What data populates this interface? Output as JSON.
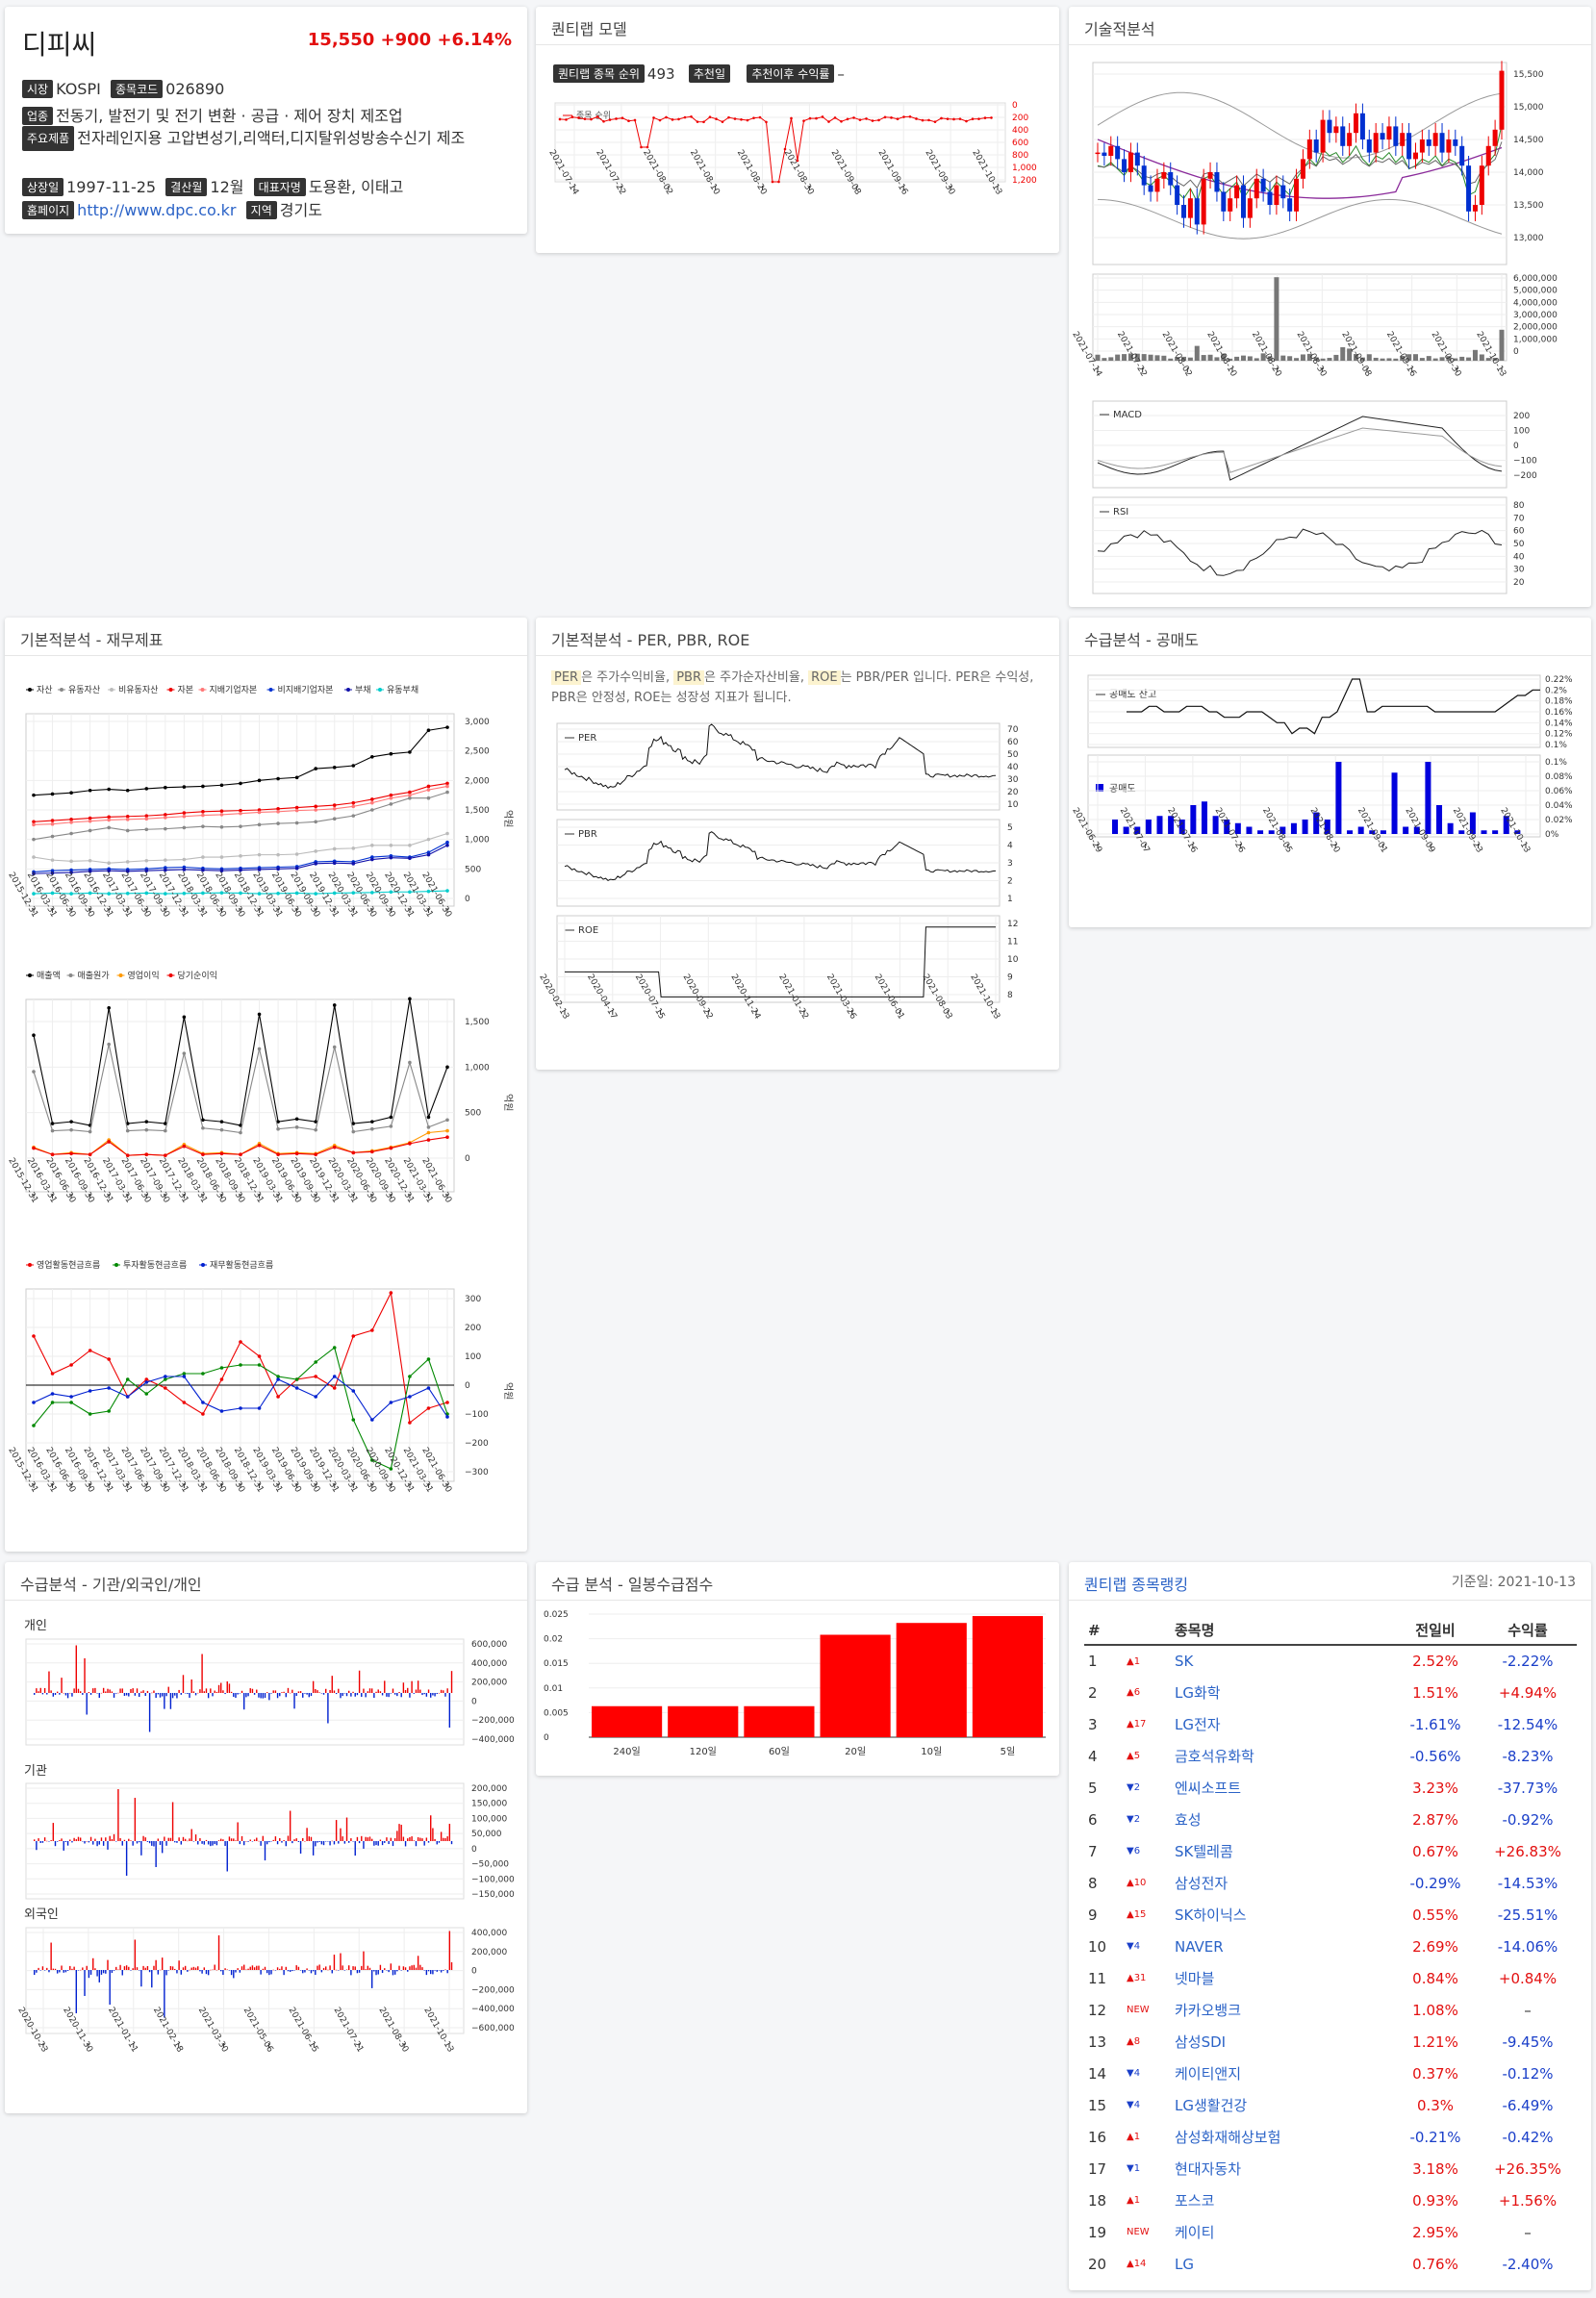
{
  "stock": {
    "name": "디피씨",
    "price": "15,550",
    "change": "+900",
    "change_pct": "+6.14%",
    "market_tag": "시장",
    "market": "KOSPI",
    "code_tag": "종목코드",
    "code": "026890",
    "industry_tag": "업종",
    "industry": "전동기, 발전기 및 전기 변환 · 공급 · 제어 장치 제조업",
    "products_tag": "주요제품",
    "products": "전자레인지용 고압변성기,리액터,디지탈위성방송수신기 제조",
    "listed_tag": "상장일",
    "listed": "1997-11-25",
    "fiscal_tag": "결산월",
    "fiscal": "12월",
    "ceo_tag": "대표자명",
    "ceo": "도용환, 이태고",
    "homepage_tag": "홈페이지",
    "homepage": "http://www.dpc.co.kr",
    "region_tag": "지역",
    "region": "경기도"
  },
  "quant": {
    "title": "퀀티랩 모델",
    "rank_tag": "퀀티랩 종목 순위",
    "rank": "493",
    "rec_date_tag": "추천일",
    "return_tag": "추천이후 수익률",
    "return": "–",
    "legend": "종목 순위",
    "yticks": [
      "0",
      "200",
      "400",
      "600",
      "800",
      "1,000",
      "1,200"
    ],
    "xticks": [
      "2021-07-14",
      "2021-07-22",
      "2021-08-02",
      "2021-08-10",
      "2021-08-20",
      "2021-08-30",
      "2021-09-08",
      "2021-09-16",
      "2021-09-30",
      "2021-10-13"
    ]
  },
  "tech": {
    "title": "기술적분석",
    "price_ticks": [
      "15,500",
      "15,000",
      "14,500",
      "14,000",
      "13,500",
      "13,000"
    ],
    "vol_ticks": [
      "6,000,000",
      "5,000,000",
      "4,000,000",
      "3,000,000",
      "2,000,000",
      "1,000,000",
      "0"
    ],
    "xticks": [
      "2021-07-14",
      "2021-07-22",
      "2021-08-02",
      "2021-08-10",
      "2021-08-20",
      "2021-08-30",
      "2021-09-08",
      "2021-09-16",
      "2021-09-30",
      "2021-10-13"
    ],
    "macd_label": "MACD",
    "macd_ticks": [
      "200",
      "100",
      "0",
      "−100",
      "−200"
    ],
    "rsi_label": "RSI",
    "rsi_ticks": [
      "80",
      "70",
      "60",
      "50",
      "40",
      "30",
      "20"
    ]
  },
  "fund": {
    "title": "기본적분석 - 재무제표",
    "unit": "억원",
    "legend1": [
      "자산",
      "유동자산",
      "비유동자산",
      "자본",
      "지배기업자본",
      "비지배기업자본",
      "부채",
      "유동부채"
    ],
    "ticks1": [
      "3,000",
      "2,500",
      "2,000",
      "1,500",
      "1,000",
      "500",
      "0"
    ],
    "legend2": [
      "매출액",
      "매출원가",
      "영업이익",
      "당기순이익"
    ],
    "ticks2": [
      "1,500",
      "1,000",
      "500",
      "0"
    ],
    "legend3": [
      "영업활동현금흐름",
      "투자활동현금흐름",
      "재무활동현금흐름"
    ],
    "ticks3": [
      "300",
      "200",
      "100",
      "0",
      "−100",
      "−200",
      "−300"
    ],
    "dates": [
      "2015-12-31",
      "2016-03-31",
      "2016-06-30",
      "2016-09-30",
      "2016-12-31",
      "2017-03-31",
      "2017-06-30",
      "2017-09-30",
      "2017-12-31",
      "2018-03-31",
      "2018-06-30",
      "2018-09-30",
      "2018-12-31",
      "2019-03-31",
      "2019-06-30",
      "2019-09-30",
      "2019-12-31",
      "2020-03-31",
      "2020-06-30",
      "2020-09-30",
      "2020-12-31",
      "2021-03-31",
      "2021-06-30"
    ]
  },
  "per": {
    "title": "기본적분석 - PER, PBR, ROE",
    "desc_parts": [
      "PER",
      "은 주가수익비율, ",
      "PBR",
      "은 주가순자산비율, ",
      "ROE",
      "는 PBR/PER 입니다. PER은 수익성, PBR은 안정성, ROE는 성장성 지표가 됩니다."
    ],
    "per_label": "PER",
    "per_ticks": [
      "70",
      "60",
      "50",
      "40",
      "30",
      "20",
      "10"
    ],
    "pbr_label": "PBR",
    "pbr_ticks": [
      "5",
      "4",
      "3",
      "2",
      "1"
    ],
    "roe_label": "ROE",
    "roe_ticks": [
      "12",
      "11",
      "10",
      "9",
      "8"
    ],
    "xticks": [
      "2020-02-13",
      "2020-04-17",
      "2020-07-15",
      "2020-09-22",
      "2020-11-24",
      "2021-01-22",
      "2021-03-26",
      "2021-06-01",
      "2021-08-03",
      "2021-10-13"
    ]
  },
  "short": {
    "title": "수급분석 - 공매도",
    "bal_label": "공매도 잔고",
    "bal_ticks": [
      "0.22%",
      "0.2%",
      "0.18%",
      "0.16%",
      "0.14%",
      "0.12%",
      "0.1%"
    ],
    "sale_label": "공매도",
    "sale_ticks": [
      "0.1%",
      "0.08%",
      "0.06%",
      "0.04%",
      "0.02%",
      "0%"
    ],
    "xticks": [
      "2021-06-29",
      "2021-07-07",
      "2021-07-16",
      "2021-07-26",
      "2021-08-05",
      "2021-08-20",
      "2021-09-01",
      "2021-09-09",
      "2021-09-23",
      "2021-10-13"
    ]
  },
  "flow": {
    "title": "수급분석 - 기관/외국인/개인",
    "indiv_label": "개인",
    "indiv_ticks": [
      "600,000",
      "400,000",
      "200,000",
      "0",
      "−200,000",
      "−400,000"
    ],
    "inst_label": "기관",
    "inst_ticks": [
      "200,000",
      "150,000",
      "100,000",
      "50,000",
      "0",
      "−50,000",
      "−100,000",
      "−150,000"
    ],
    "foreign_label": "외국인",
    "foreign_ticks": [
      "400,000",
      "200,000",
      "0",
      "−200,000",
      "−400,000",
      "−600,000"
    ],
    "xticks": [
      "2020-10-23",
      "2020-11-30",
      "2021-01-11",
      "2021-02-18",
      "2021-03-30",
      "2021-05-06",
      "2021-06-15",
      "2021-07-21",
      "2021-08-30",
      "2021-10-13"
    ]
  },
  "score": {
    "title": "수급 분석 - 일봉수급점수"
  },
  "chart_data": [
    {
      "type": "bar",
      "title": "수급 분석 - 일봉수급점수",
      "categories": [
        "240일",
        "120일",
        "60일",
        "20일",
        "10일",
        "5일"
      ],
      "values": [
        0.0063,
        0.0063,
        0.0063,
        0.0208,
        0.0232,
        0.0246
      ],
      "ylim": [
        0,
        0.025
      ],
      "yticks": [
        "0.025",
        "0.02",
        "0.015",
        "0.01",
        "0.005",
        "0"
      ],
      "color": "#ff0000"
    }
  ],
  "ranking": {
    "title": "퀀티랩 종목랭킹",
    "date": "기준일: 2021-10-13",
    "cols": [
      "#",
      "종목명",
      "전일비",
      "수익률"
    ],
    "rows": [
      {
        "n": "1",
        "mv": "▲1",
        "up": true,
        "name": "SK",
        "chg": "2.52%",
        "ret": "-2.22%"
      },
      {
        "n": "2",
        "mv": "▲6",
        "up": true,
        "name": "LG화학",
        "chg": "1.51%",
        "ret": "+4.94%"
      },
      {
        "n": "3",
        "mv": "▲17",
        "up": true,
        "name": "LG전자",
        "chg": "-1.61%",
        "ret": "-12.54%"
      },
      {
        "n": "4",
        "mv": "▲5",
        "up": true,
        "name": "금호석유화학",
        "chg": "-0.56%",
        "ret": "-8.23%"
      },
      {
        "n": "5",
        "mv": "▼2",
        "up": false,
        "name": "엔씨소프트",
        "chg": "3.23%",
        "ret": "-37.73%"
      },
      {
        "n": "6",
        "mv": "▼2",
        "up": false,
        "name": "효성",
        "chg": "2.87%",
        "ret": "-0.92%"
      },
      {
        "n": "7",
        "mv": "▼6",
        "up": false,
        "name": "SK텔레콤",
        "chg": "0.67%",
        "ret": "+26.83%"
      },
      {
        "n": "8",
        "mv": "▲10",
        "up": true,
        "name": "삼성전자",
        "chg": "-0.29%",
        "ret": "-14.53%"
      },
      {
        "n": "9",
        "mv": "▲15",
        "up": true,
        "name": "SK하이닉스",
        "chg": "0.55%",
        "ret": "-25.51%"
      },
      {
        "n": "10",
        "mv": "▼4",
        "up": false,
        "name": "NAVER",
        "chg": "2.69%",
        "ret": "-14.06%"
      },
      {
        "n": "11",
        "mv": "▲31",
        "up": true,
        "name": "넷마블",
        "chg": "0.84%",
        "ret": "+0.84%"
      },
      {
        "n": "12",
        "mv": "NEW",
        "up": true,
        "name": "카카오뱅크",
        "chg": "1.08%",
        "ret": "–"
      },
      {
        "n": "13",
        "mv": "▲8",
        "up": true,
        "name": "삼성SDI",
        "chg": "1.21%",
        "ret": "-9.45%"
      },
      {
        "n": "14",
        "mv": "▼4",
        "up": false,
        "name": "케이티앤지",
        "chg": "0.37%",
        "ret": "-0.12%"
      },
      {
        "n": "15",
        "mv": "▼4",
        "up": false,
        "name": "LG생활건강",
        "chg": "0.3%",
        "ret": "-6.49%"
      },
      {
        "n": "16",
        "mv": "▲1",
        "up": true,
        "name": "삼성화재해상보험",
        "chg": "-0.21%",
        "ret": "-0.42%"
      },
      {
        "n": "17",
        "mv": "▼1",
        "up": false,
        "name": "현대자동차",
        "chg": "3.18%",
        "ret": "+26.35%"
      },
      {
        "n": "18",
        "mv": "▲1",
        "up": true,
        "name": "포스코",
        "chg": "0.93%",
        "ret": "+1.56%"
      },
      {
        "n": "19",
        "mv": "NEW",
        "up": true,
        "name": "케이티",
        "chg": "2.95%",
        "ret": "–"
      },
      {
        "n": "20",
        "mv": "▲14",
        "up": true,
        "name": "LG",
        "chg": "0.76%",
        "ret": "-2.40%"
      }
    ]
  }
}
